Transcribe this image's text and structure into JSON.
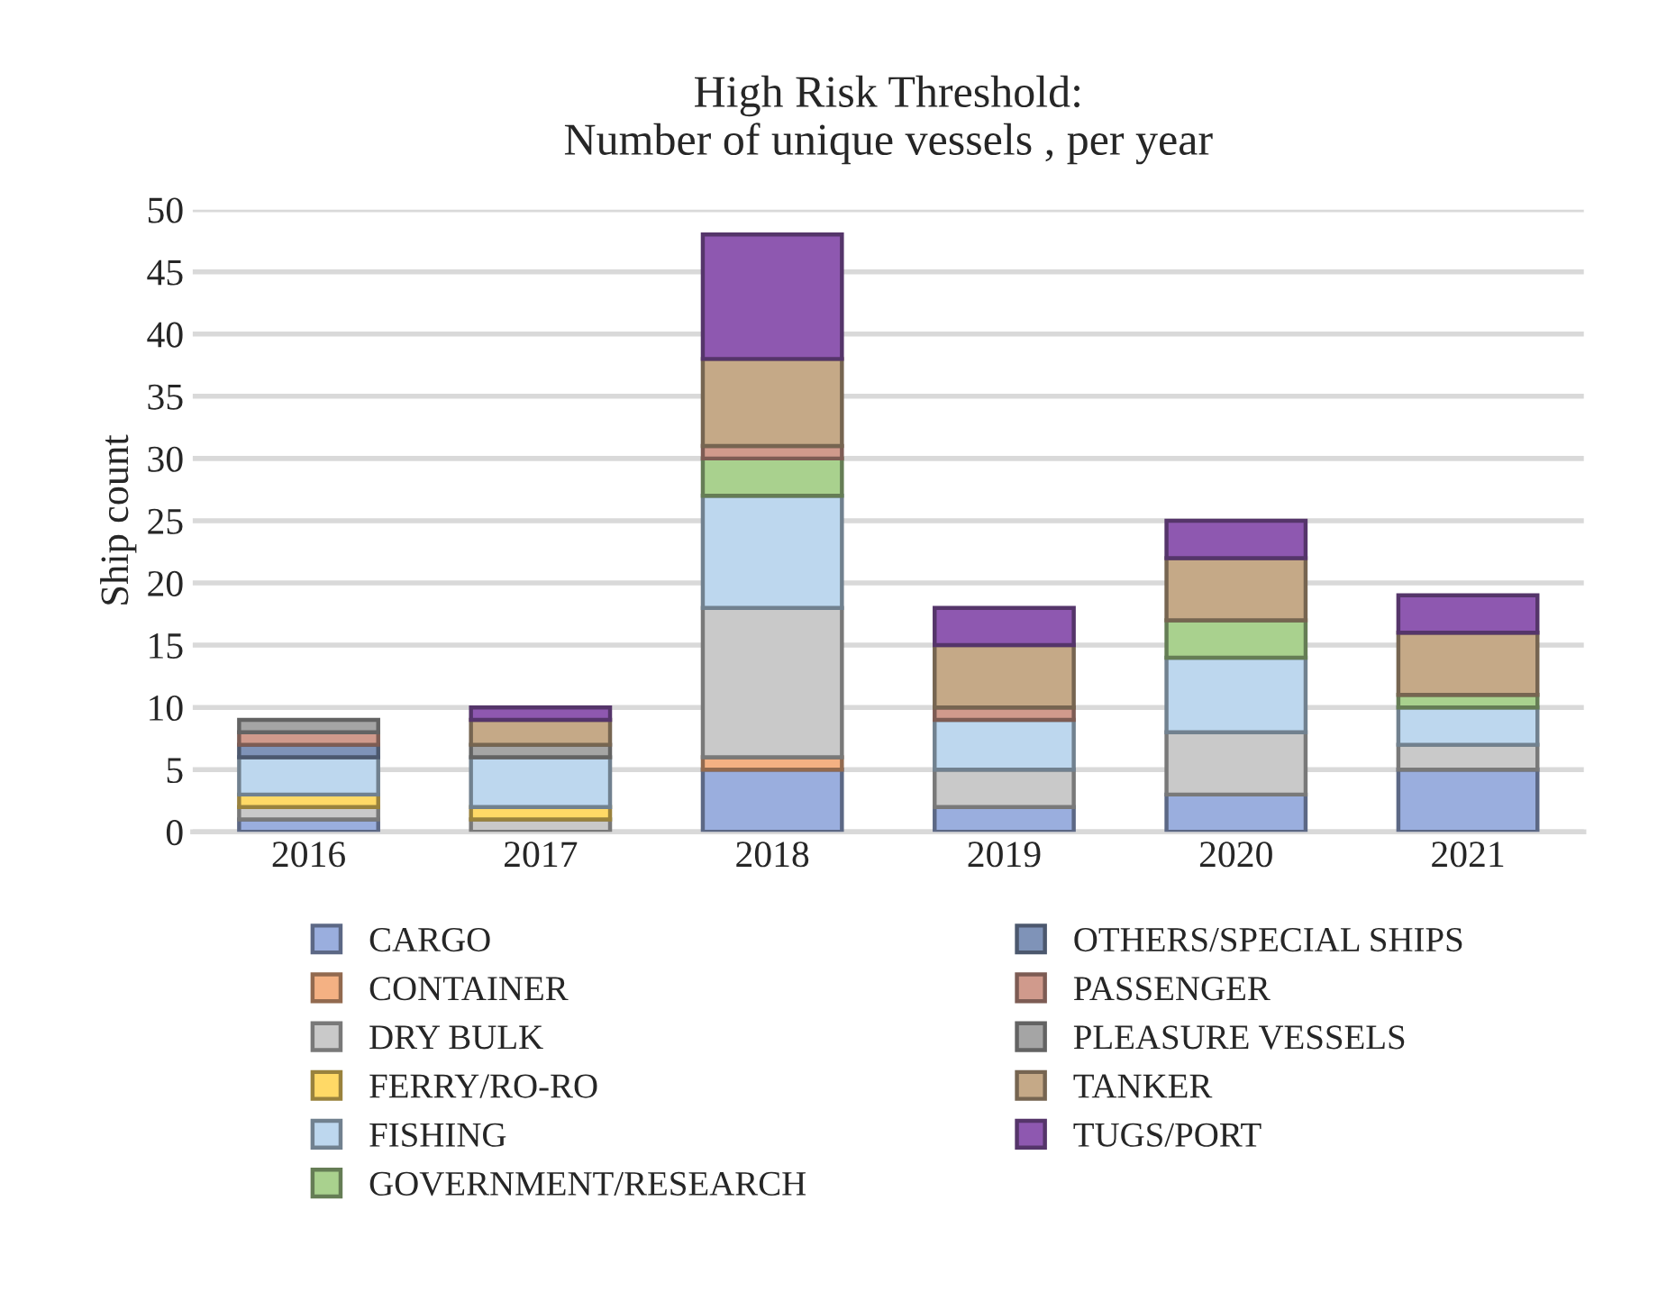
{
  "chart_data": {
    "type": "bar",
    "title": "High Risk Threshold:\nNumber of unique vessels , per year",
    "ylabel": "Ship count",
    "categories": [
      "2016",
      "2017",
      "2018",
      "2019",
      "2020",
      "2021"
    ],
    "stacked": true,
    "ylim": [
      0,
      50
    ],
    "yticks": [
      0,
      5,
      10,
      15,
      20,
      25,
      30,
      35,
      40,
      45,
      50
    ],
    "grid": "y",
    "legend": "bottom",
    "series": [
      {
        "name": "CARGO",
        "color": "#9aaede",
        "values": [
          1,
          null,
          5,
          2,
          3,
          5
        ]
      },
      {
        "name": "CONTAINER",
        "color": "#f4b183",
        "values": [
          null,
          null,
          1,
          null,
          null,
          null
        ]
      },
      {
        "name": "DRY BULK",
        "color": "#c9c9c9",
        "values": [
          1,
          1,
          12,
          3,
          5,
          2
        ]
      },
      {
        "name": "FERRY/RO-RO",
        "color": "#ffd966",
        "values": [
          1,
          1,
          null,
          null,
          null,
          null
        ]
      },
      {
        "name": "FISHING",
        "color": "#bdd7ee",
        "values": [
          3,
          4,
          9,
          4,
          6,
          3
        ]
      },
      {
        "name": "GOVERNMENT/RESEARCH",
        "color": "#a9d18e",
        "values": [
          null,
          null,
          3,
          null,
          3,
          1
        ]
      },
      {
        "name": "OTHERS/SPECIAL SHIPS",
        "color": "#7f93b8",
        "values": [
          1,
          null,
          null,
          null,
          null,
          null
        ]
      },
      {
        "name": "PASSENGER",
        "color": "#d09a8c",
        "values": [
          1,
          null,
          1,
          1,
          null,
          null
        ]
      },
      {
        "name": "PLEASURE VESSELS",
        "color": "#a5a5a5",
        "values": [
          1,
          1,
          null,
          null,
          null,
          null
        ]
      },
      {
        "name": "TANKER",
        "color": "#c5a987",
        "values": [
          null,
          2,
          7,
          5,
          5,
          5
        ]
      },
      {
        "name": "TUGS/PORT",
        "color": "#8e58b0",
        "values": [
          null,
          1,
          10,
          3,
          3,
          3
        ]
      }
    ]
  }
}
